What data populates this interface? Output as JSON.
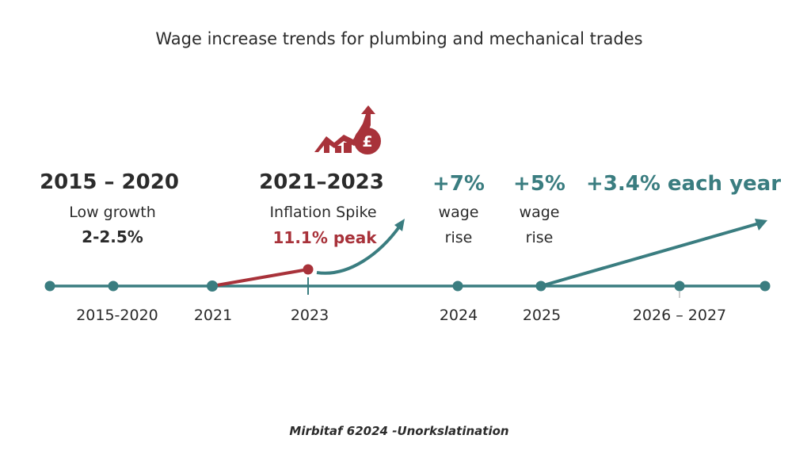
{
  "title": "Wage increase trends for plumbing and mechanical trades",
  "colors": {
    "timeline": "#3a7d80",
    "inflation": "#a8323a",
    "text": "#2b2b2b"
  },
  "icons": [
    "rising-chart-pound-icon"
  ],
  "periods": [
    {
      "heading": "2015 – 2020",
      "line1": "Low growth",
      "line2": "2-2.5%"
    },
    {
      "heading": "2021–2023",
      "line1": "Inflation Spike",
      "line2": "11.1% peak"
    },
    {
      "heading": "+7%",
      "line1": "wage",
      "line2": "rise"
    },
    {
      "heading": "+5%",
      "line1": "wage",
      "line2": "rise"
    },
    {
      "heading": "+3.4% each year"
    }
  ],
  "years": [
    "2015-2020",
    "2021",
    "2023",
    "2024",
    "2025",
    "2026 – 2027"
  ],
  "footer": "Mirbitaf 62024 -Unorkslatination"
}
